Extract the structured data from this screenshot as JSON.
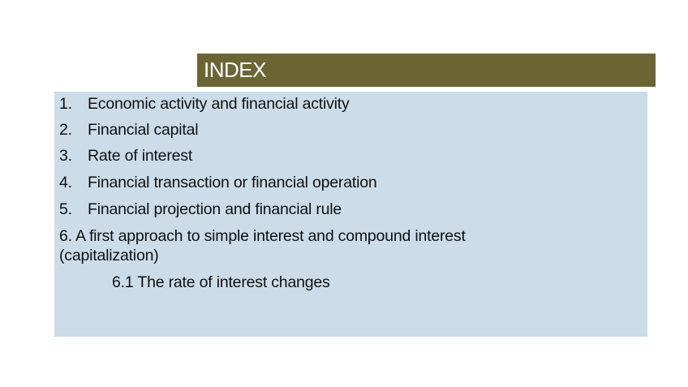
{
  "title": "INDEX",
  "items": [
    {
      "number": "1.",
      "label": "Economic activity and financial activity"
    },
    {
      "number": "2.",
      "label": "Financial capital"
    },
    {
      "number": "3.",
      "label": "Rate of interest"
    },
    {
      "number": "4.",
      "label": "Financial transaction or financial operation"
    },
    {
      "number": "5.",
      "label": "Financial projection and financial rule"
    }
  ],
  "item6": {
    "line1": "6. A first approach to simple interest and compound interest",
    "line2": "(capitalization)"
  },
  "subitem": "6.1 The rate of interest  changes",
  "colors": {
    "title_bg": "#6b6534",
    "content_bg": "#ccdce8"
  }
}
